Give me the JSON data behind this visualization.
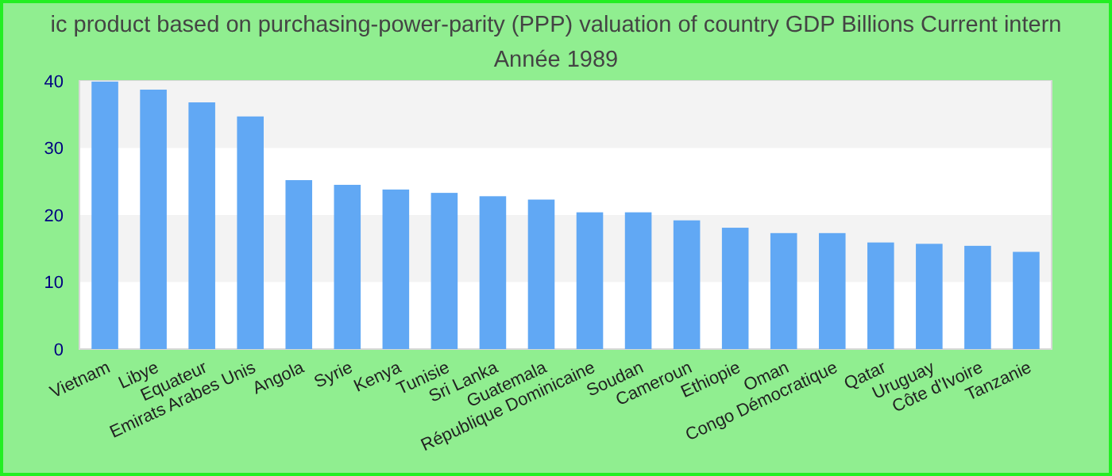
{
  "chart_data": {
    "type": "bar",
    "title": "ic product based on purchasing-power-parity (PPP) valuation of country GDP Billions Current intern",
    "subtitle": "Année 1989",
    "categories": [
      "Vietnam",
      "Libye",
      "Equateur",
      "Emirats Arabes Unis",
      "Angola",
      "Syrie",
      "Kenya",
      "Tunisie",
      "Sri Lanka",
      "Guatemala",
      "République Dominicaine",
      "Soudan",
      "Cameroun",
      "Ethiopie",
      "Oman",
      "Congo Démocratique",
      "Qatar",
      "Uruguay",
      "Côte d'Ivoire",
      "Tanzanie"
    ],
    "values": [
      39.9,
      38.7,
      36.8,
      34.7,
      25.2,
      24.5,
      23.8,
      23.3,
      22.8,
      22.3,
      20.4,
      20.4,
      19.2,
      18.1,
      17.3,
      17.3,
      15.9,
      15.7,
      15.4,
      14.5
    ],
    "color": "#61a8f4",
    "ylim": [
      0,
      40
    ],
    "yticks": [
      0,
      10,
      20,
      30,
      40
    ]
  }
}
